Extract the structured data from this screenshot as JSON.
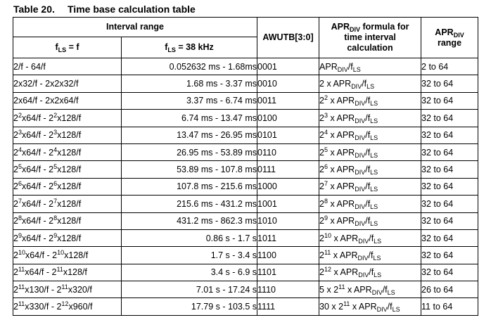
{
  "caption": {
    "number": "Table 20.",
    "title": "Time base calculation table"
  },
  "header": {
    "interval_range": "Interval range",
    "fls_f": {
      "pre": "f",
      "sub": "LS",
      "post": " = f"
    },
    "fls_38": {
      "pre": "f",
      "sub": "LS",
      "post": " = 38 kHz"
    },
    "awutb": "AWUTB[3:0]",
    "formula": {
      "pre": "APR",
      "sub": "DIV",
      "post": " formula for",
      "line2": "time interval",
      "line3": "calculation"
    },
    "range": {
      "pre": "APR",
      "sub": "DIV",
      "line2": "range"
    }
  },
  "rows": [
    {
      "interval_f": [
        {
          "t": "2/f - 64/f"
        }
      ],
      "lo": "0.052632 ms",
      "hi": "1.68ms",
      "awutb": "0001",
      "formula": [
        {
          "t": "APR"
        },
        {
          "sub": "DIV"
        },
        {
          "t": "/f"
        },
        {
          "sub": "LS"
        }
      ],
      "range": "2 to 64"
    },
    {
      "interval_f": [
        {
          "t": "2x32/f - 2x2x32/f"
        }
      ],
      "lo": "1.68 ms",
      "hi": "3.37 ms",
      "awutb": "0010",
      "formula": [
        {
          "t": "2 x APR"
        },
        {
          "sub": "DIV"
        },
        {
          "t": "/f"
        },
        {
          "sub": "LS"
        }
      ],
      "range": "32 to 64"
    },
    {
      "interval_f": [
        {
          "t": "2x64/f - 2x2x64/f"
        }
      ],
      "lo": "3.37 ms",
      "hi": "6.74 ms",
      "awutb": "0011",
      "formula": [
        {
          "t": "2"
        },
        {
          "sup": "2"
        },
        {
          "t": " x APR"
        },
        {
          "sub": "DIV"
        },
        {
          "t": "/f"
        },
        {
          "sub": "LS"
        }
      ],
      "range": "32 to 64"
    },
    {
      "interval_f": [
        {
          "t": "2"
        },
        {
          "sup": "2"
        },
        {
          "t": "x64/f - 2"
        },
        {
          "sup": "2"
        },
        {
          "t": "x128/f"
        }
      ],
      "lo": "6.74 ms",
      "hi": "13.47 ms",
      "awutb": "0100",
      "formula": [
        {
          "t": "2"
        },
        {
          "sup": "3"
        },
        {
          "t": " x APR"
        },
        {
          "sub": "DIV"
        },
        {
          "t": "/f"
        },
        {
          "sub": "LS"
        }
      ],
      "range": "32 to 64"
    },
    {
      "interval_f": [
        {
          "t": "2"
        },
        {
          "sup": "3"
        },
        {
          "t": "x64/f - 2"
        },
        {
          "sup": "3"
        },
        {
          "t": "x128/f"
        }
      ],
      "lo": "13.47 ms",
      "hi": "26.95 ms",
      "awutb": "0101",
      "formula": [
        {
          "t": "2"
        },
        {
          "sup": "4"
        },
        {
          "t": " x APR"
        },
        {
          "sub": "DIV"
        },
        {
          "t": "/f"
        },
        {
          "sub": "LS"
        }
      ],
      "range": "32 to 64"
    },
    {
      "interval_f": [
        {
          "t": "2"
        },
        {
          "sup": "4"
        },
        {
          "t": "x64/f - 2"
        },
        {
          "sup": "4"
        },
        {
          "t": "x128/f"
        }
      ],
      "lo": "26.95 ms",
      "hi": "53.89 ms",
      "awutb": "0110",
      "formula": [
        {
          "t": "2"
        },
        {
          "sup": "5"
        },
        {
          "t": " x APR"
        },
        {
          "sub": "DIV"
        },
        {
          "t": "/f"
        },
        {
          "sub": "LS"
        }
      ],
      "range": "32 to 64"
    },
    {
      "interval_f": [
        {
          "t": "2"
        },
        {
          "sup": "5"
        },
        {
          "t": "x64/f - 2"
        },
        {
          "sup": "5"
        },
        {
          "t": "x128/f"
        }
      ],
      "lo": "53.89 ms",
      "hi": "107.8 ms",
      "awutb": "0111",
      "formula": [
        {
          "t": "2"
        },
        {
          "sup": "6"
        },
        {
          "t": " x APR"
        },
        {
          "sub": "DIV"
        },
        {
          "t": "/f"
        },
        {
          "sub": "LS"
        }
      ],
      "range": "32 to 64"
    },
    {
      "interval_f": [
        {
          "t": "2"
        },
        {
          "sup": "6"
        },
        {
          "t": "x64/f - 2"
        },
        {
          "sup": "6"
        },
        {
          "t": "x128/f"
        }
      ],
      "lo": "107.8 ms",
      "hi": "215.6 ms",
      "awutb": "1000",
      "formula": [
        {
          "t": "2"
        },
        {
          "sup": "7"
        },
        {
          "t": " x APR"
        },
        {
          "sub": "DIV"
        },
        {
          "t": "/f"
        },
        {
          "sub": "LS"
        }
      ],
      "range": "32 to 64"
    },
    {
      "interval_f": [
        {
          "t": "2"
        },
        {
          "sup": "7"
        },
        {
          "t": "x64/f - 2"
        },
        {
          "sup": "7"
        },
        {
          "t": "x128/f"
        }
      ],
      "lo": "215.6 ms",
      "hi": "431.2 ms",
      "awutb": "1001",
      "formula": [
        {
          "t": "2"
        },
        {
          "sup": "8"
        },
        {
          "t": " x APR"
        },
        {
          "sub": "DIV"
        },
        {
          "t": "/f"
        },
        {
          "sub": "LS"
        }
      ],
      "range": "32 to 64"
    },
    {
      "interval_f": [
        {
          "t": "2"
        },
        {
          "sup": "8"
        },
        {
          "t": "x64/f - 2"
        },
        {
          "sup": "8"
        },
        {
          "t": "x128/f"
        }
      ],
      "lo": "431.2 ms",
      "hi": "862.3 ms",
      "awutb": "1010",
      "formula": [
        {
          "t": "2"
        },
        {
          "sup": "9"
        },
        {
          "t": " x APR"
        },
        {
          "sub": "DIV"
        },
        {
          "t": "/f"
        },
        {
          "sub": "LS"
        }
      ],
      "range": "32 to 64"
    },
    {
      "interval_f": [
        {
          "t": "2"
        },
        {
          "sup": "9"
        },
        {
          "t": "x64/f - 2"
        },
        {
          "sup": "9"
        },
        {
          "t": "x128/f"
        }
      ],
      "lo": "0.86 s",
      "hi": "1.7 s",
      "awutb": "1011",
      "formula": [
        {
          "t": "2"
        },
        {
          "sup": "10"
        },
        {
          "t": " x APR"
        },
        {
          "sub": "DIV"
        },
        {
          "t": "/f"
        },
        {
          "sub": "LS"
        }
      ],
      "range": "32 to 64"
    },
    {
      "interval_f": [
        {
          "t": "2"
        },
        {
          "sup": "10"
        },
        {
          "t": "x64/f - 2"
        },
        {
          "sup": "10"
        },
        {
          "t": "x128/f"
        }
      ],
      "lo": "1.7 s",
      "hi": "3.4 s",
      "awutb": "1100",
      "formula": [
        {
          "t": "2"
        },
        {
          "sup": "11"
        },
        {
          "t": " x APR"
        },
        {
          "sub": "DIV"
        },
        {
          "t": "/f"
        },
        {
          "sub": "LS"
        }
      ],
      "range": "32 to 64"
    },
    {
      "interval_f": [
        {
          "t": "2"
        },
        {
          "sup": "11"
        },
        {
          "t": "x64/f - 2"
        },
        {
          "sup": "11"
        },
        {
          "t": "x128/f"
        }
      ],
      "lo": "3.4 s",
      "hi": "6.9 s",
      "awutb": "1101",
      "formula": [
        {
          "t": "2"
        },
        {
          "sup": "12"
        },
        {
          "t": " x APR"
        },
        {
          "sub": "DIV"
        },
        {
          "t": "/f"
        },
        {
          "sub": "LS"
        }
      ],
      "range": "32 to 64"
    },
    {
      "interval_f": [
        {
          "t": "2"
        },
        {
          "sup": "11"
        },
        {
          "t": "x130/f - 2"
        },
        {
          "sup": "11"
        },
        {
          "t": "x320/f"
        }
      ],
      "lo": "7.01 s",
      "hi": "17.24 s",
      "awutb": "1110",
      "formula": [
        {
          "t": "5 x 2"
        },
        {
          "sup": "11"
        },
        {
          "t": " x APR"
        },
        {
          "sub": "DIV"
        },
        {
          "t": "/f"
        },
        {
          "sub": "LS"
        }
      ],
      "range": "26 to 64"
    },
    {
      "interval_f": [
        {
          "t": "2"
        },
        {
          "sup": "11"
        },
        {
          "t": "x330/f - 2"
        },
        {
          "sup": "12"
        },
        {
          "t": "x960/f"
        }
      ],
      "lo": "17.79 s",
      "hi": "103.5 s",
      "awutb": "1111",
      "formula": [
        {
          "t": "30 x 2"
        },
        {
          "sup": "11"
        },
        {
          "t": " x APR"
        },
        {
          "sub": "DIV"
        },
        {
          "t": "/f"
        },
        {
          "sub": "LS"
        }
      ],
      "range": "11 to 64"
    }
  ],
  "separator": " - "
}
